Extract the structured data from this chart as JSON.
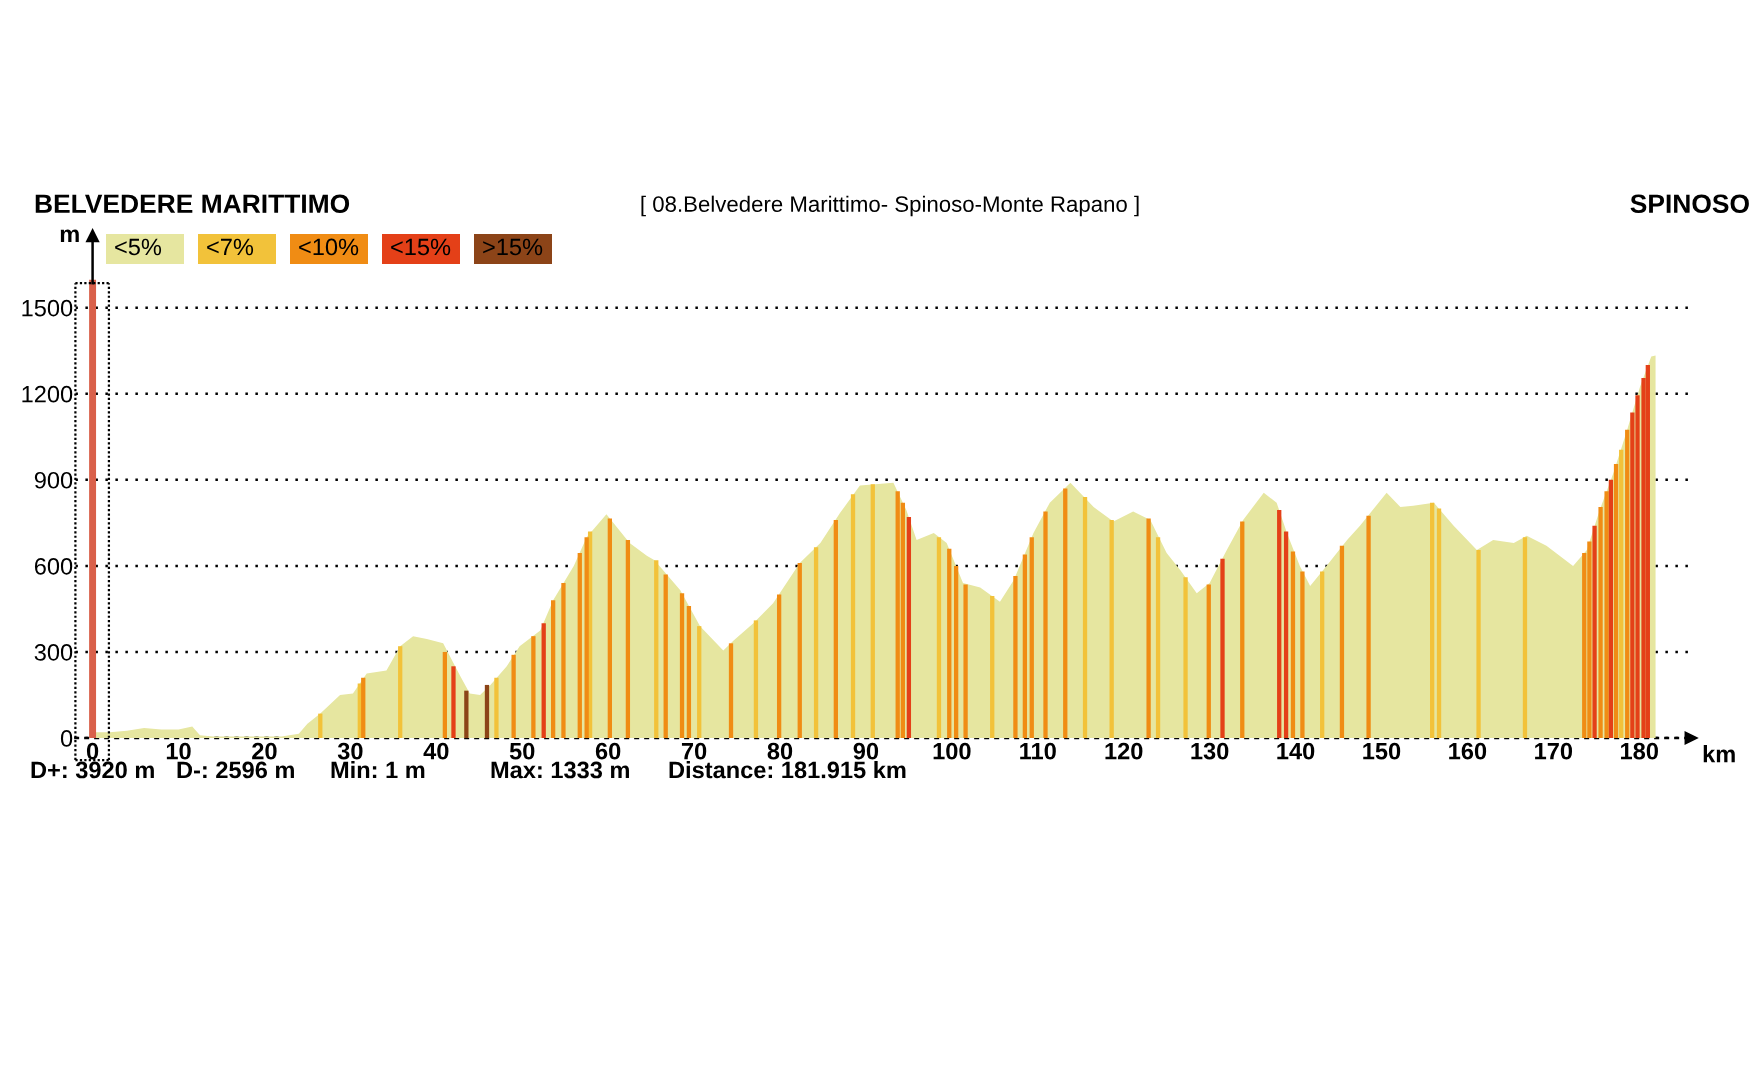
{
  "chart_data": {
    "type": "area",
    "title": "[ 08.Belvedere Marittimo- Spinoso-Monte Rapano ]",
    "xlabel": "km",
    "ylabel": "m",
    "annotations": [
      "BELVEDERE MARITTIMO",
      "SPINOSO",
      "D+: 3920 m",
      "D-: 2596 m",
      "Min: 1 m",
      "Max: 1333 m",
      "Distance: 181.915 km"
    ],
    "xlim": [
      -2,
      186
    ],
    "ylim": [
      0,
      1750
    ],
    "xticks": [
      0,
      10,
      20,
      30,
      40,
      50,
      60,
      70,
      80,
      90,
      100,
      110,
      120,
      130,
      140,
      150,
      160,
      170,
      180
    ],
    "yticks": [
      0,
      300,
      600,
      900,
      1200,
      1500
    ],
    "grid": "y",
    "legend": "top left",
    "ref_lines": [
      {
        "axis": "x",
        "value": 0,
        "color": "#d9604a"
      },
      {
        "axis": "x",
        "value": -2,
        "color": "#000000",
        "line_style": "dotted"
      },
      {
        "axis": "x",
        "value": 1.9,
        "color": "#000000",
        "line_style": "dotted"
      }
    ],
    "series": [
      {
        "name": "<5%",
        "color": "#e6e6a0",
        "x": [
          0,
          2,
          4,
          6,
          8,
          10,
          11.6,
          12.5,
          14,
          18,
          22,
          24,
          25,
          26.5,
          28.8,
          30.3,
          31.9,
          34.2,
          35.8,
          37.3,
          38.9,
          40.8,
          42.8,
          43.9,
          45.1,
          46.3,
          48.2,
          49.7,
          52.1,
          53.6,
          56,
          57.5,
          59.8,
          62.5,
          64.5,
          65.4,
          68.4,
          70.7,
          73.4,
          74.6,
          76.9,
          79.2,
          82.3,
          84.7,
          87,
          89.3,
          93.2,
          94.7,
          95.9,
          97.9,
          99.4,
          101.3,
          103.3,
          105.6,
          107.2,
          109.5,
          111.4,
          113.8,
          116.5,
          118.8,
          121.1,
          123.1,
          125,
          126.6,
          128.5,
          130,
          132,
          133.9,
          136.3,
          137.8,
          139,
          140.5,
          141.7,
          143.6,
          146,
          147.5,
          150.6,
          152.2,
          153.7,
          156.1,
          158.4,
          161.1,
          163,
          165.4,
          166.9,
          169.2,
          172.3,
          173.9,
          175.4,
          177,
          178.5,
          180.1,
          181.4,
          181.9
        ],
        "values": [
          20,
          20,
          25,
          35,
          30,
          30,
          40,
          10,
          5,
          5,
          5,
          15,
          50,
          85,
          150,
          155,
          225,
          235,
          320,
          355,
          345,
          330,
          215,
          155,
          150,
          185,
          250,
          320,
          375,
          480,
          600,
          700,
          780,
          680,
          635,
          620,
          515,
          390,
          305,
          340,
          400,
          470,
          610,
          680,
          785,
          880,
          890,
          795,
          690,
          715,
          680,
          540,
          525,
          475,
          550,
          715,
          820,
          890,
          805,
          755,
          790,
          760,
          645,
          585,
          505,
          540,
          655,
          760,
          855,
          820,
          715,
          600,
          530,
          600,
          690,
          740,
          855,
          805,
          810,
          820,
          740,
          655,
          690,
          680,
          705,
          670,
          600,
          655,
          795,
          925,
          1065,
          1225,
          1330,
          1333
        ]
      },
      {
        "name": "<7%",
        "type": "bar",
        "color": "#f2c23a",
        "x": [
          26.5,
          31.1,
          35.8,
          47,
          57.9,
          65.6,
          70.6,
          77.2,
          84.2,
          88.5,
          90.8,
          98.5,
          104.7,
          115.5,
          118.6,
          124,
          127.2,
          143.1,
          155.9,
          156.7,
          161.3,
          166.7,
          177.9
        ],
        "values": [
          85,
          190,
          320,
          210,
          720,
          620,
          390,
          410,
          665,
          850,
          885,
          700,
          495,
          840,
          760,
          700,
          560,
          580,
          820,
          800,
          655,
          700,
          1005
        ]
      },
      {
        "name": "<10%",
        "type": "bar",
        "color": "#f08c14",
        "x": [
          31.5,
          41,
          49,
          51.3,
          53.6,
          54.8,
          56.7,
          57.5,
          60.2,
          62.3,
          66.7,
          68.6,
          69.4,
          74.3,
          79.9,
          82.3,
          86.5,
          93.7,
          94.3,
          99.7,
          100.5,
          101.6,
          107.4,
          108.5,
          109.3,
          110.9,
          113.2,
          122.9,
          129.9,
          133.8,
          139.7,
          140.8,
          145.4,
          148.5,
          173.6,
          174.2,
          175.5,
          176.2,
          177.3,
          178.6
        ],
        "values": [
          210,
          300,
          290,
          355,
          480,
          540,
          645,
          700,
          765,
          690,
          570,
          505,
          460,
          330,
          500,
          610,
          760,
          860,
          820,
          660,
          600,
          535,
          565,
          640,
          700,
          790,
          870,
          765,
          535,
          755,
          650,
          580,
          670,
          775,
          645,
          685,
          805,
          860,
          955,
          1075
        ]
      },
      {
        "name": "<15%",
        "type": "bar",
        "color": "#e44018",
        "x": [
          42,
          52.5,
          95,
          131.5,
          138.1,
          138.9,
          174.8,
          176.7,
          179.2,
          179.8,
          180.5,
          181
        ],
        "values": [
          250,
          400,
          770,
          625,
          795,
          720,
          740,
          900,
          1135,
          1195,
          1255,
          1300
        ]
      },
      {
        "name": ">15%",
        "type": "bar",
        "color": "#8c4418",
        "x": [
          43.5,
          45.9
        ],
        "values": [
          165,
          185
        ]
      }
    ]
  }
}
